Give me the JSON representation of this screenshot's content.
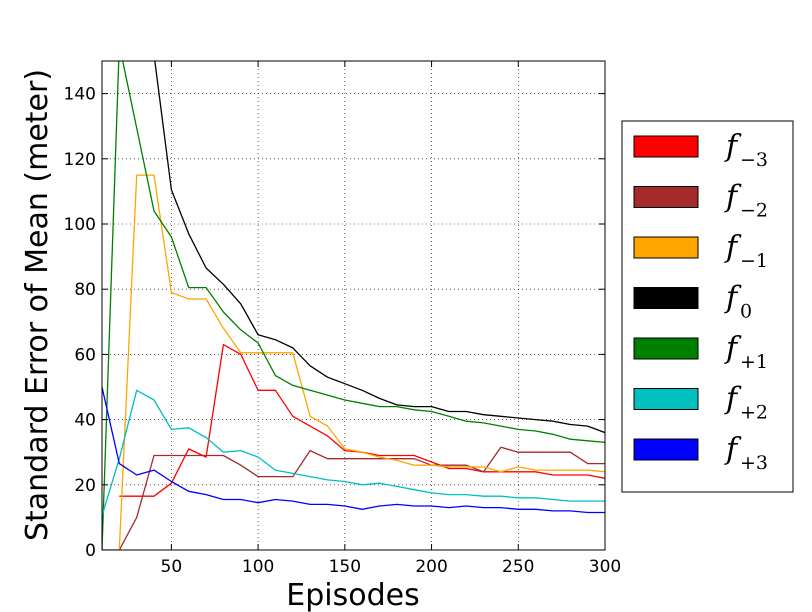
{
  "chart_data": {
    "type": "line",
    "xlabel": "Episodes",
    "ylabel": "Standard Error of Mean (meter)",
    "xlim": [
      10,
      300
    ],
    "ylim": [
      0,
      150
    ],
    "xticks": [
      50,
      100,
      150,
      200,
      250,
      300
    ],
    "yticks": [
      0,
      20,
      40,
      60,
      80,
      100,
      120,
      140
    ],
    "grid": true,
    "legend_position": "right",
    "series": [
      {
        "name_main": "f",
        "name_sub": "−3",
        "color": "#ff0000",
        "x": [
          20,
          30,
          40,
          50,
          60,
          70,
          80,
          90,
          100,
          110,
          120,
          130,
          140,
          150,
          160,
          170,
          180,
          190,
          200,
          210,
          220,
          230,
          240,
          250,
          260,
          270,
          280,
          290,
          300
        ],
        "y": [
          16.5,
          16.5,
          16.5,
          20.5,
          31,
          28.5,
          63,
          60,
          49,
          49,
          41,
          38,
          35,
          30.5,
          30,
          29,
          29,
          29,
          27,
          25,
          25,
          24,
          24,
          24,
          24,
          23,
          23,
          23,
          22
        ]
      },
      {
        "name_main": "f",
        "name_sub": "−2",
        "color": "#a52a2a",
        "x": [
          10,
          20,
          30,
          40,
          50,
          60,
          70,
          80,
          90,
          100,
          110,
          120,
          130,
          140,
          150,
          160,
          170,
          180,
          190,
          200,
          210,
          220,
          230,
          240,
          250,
          260,
          270,
          280,
          290,
          300
        ],
        "y": [
          0,
          0,
          10,
          29,
          29,
          29,
          29,
          29,
          26,
          22.5,
          22.5,
          22.5,
          30.5,
          28,
          28,
          28,
          28,
          28,
          28,
          26,
          26,
          26,
          24,
          31.5,
          30,
          30,
          30,
          30,
          26.5,
          26.5
        ]
      },
      {
        "name_main": "f",
        "name_sub": "−1",
        "color": "#ffa500",
        "x": [
          20,
          30,
          40,
          50,
          60,
          70,
          80,
          90,
          100,
          110,
          120,
          130,
          140,
          150,
          160,
          170,
          180,
          190,
          200,
          210,
          220,
          230,
          240,
          250,
          260,
          270,
          280,
          290,
          300
        ],
        "y": [
          0,
          115,
          115,
          79,
          77,
          77,
          68,
          60.5,
          60.5,
          60.5,
          60.5,
          41,
          38,
          31,
          30,
          28.5,
          27.5,
          26,
          26,
          25.5,
          25.5,
          25.5,
          24,
          25.5,
          24.5,
          24.5,
          24.5,
          24.5,
          24
        ]
      },
      {
        "name_main": "f",
        "name_sub": "0",
        "color": "#000000",
        "x": [
          40,
          50,
          60,
          70,
          80,
          90,
          100,
          110,
          120,
          130,
          140,
          150,
          160,
          170,
          180,
          190,
          200,
          210,
          220,
          230,
          240,
          250,
          260,
          270,
          280,
          290,
          300
        ],
        "y": [
          152,
          110.5,
          97,
          86.5,
          81.5,
          75.5,
          66,
          64.5,
          62,
          56.5,
          53,
          51,
          49,
          46.5,
          44.5,
          44,
          44,
          42.5,
          42.5,
          41.5,
          41,
          40.5,
          40,
          39.5,
          38.5,
          38,
          36
        ]
      },
      {
        "name_main": "f",
        "name_sub": "+1",
        "color": "#008000",
        "x": [
          10,
          20,
          40,
          50,
          60,
          70,
          80,
          90,
          100,
          110,
          120,
          130,
          140,
          150,
          160,
          170,
          180,
          190,
          200,
          210,
          220,
          230,
          240,
          250,
          260,
          270,
          280,
          290,
          300
        ],
        "y": [
          0,
          155,
          104,
          96,
          80.5,
          80.5,
          73,
          67.5,
          63.5,
          53.5,
          50.5,
          49,
          47.5,
          46,
          45,
          44,
          44,
          43,
          42.5,
          41,
          39.5,
          39,
          38,
          37,
          36.5,
          35.5,
          34,
          33.5,
          33
        ]
      },
      {
        "name_main": "f",
        "name_sub": "+2",
        "color": "#00bfbf",
        "x": [
          10,
          20,
          30,
          40,
          50,
          60,
          70,
          80,
          90,
          100,
          110,
          120,
          130,
          140,
          150,
          160,
          170,
          180,
          190,
          200,
          210,
          220,
          230,
          240,
          250,
          260,
          270,
          280,
          290,
          300
        ],
        "y": [
          10.5,
          28,
          49,
          46,
          37,
          37.5,
          34.5,
          30,
          30.5,
          28.5,
          24.5,
          23.5,
          22.5,
          21.5,
          21,
          20,
          20.5,
          19.5,
          18.5,
          17.5,
          17,
          17,
          16.5,
          16.5,
          16,
          16,
          15.5,
          15,
          15,
          15
        ]
      },
      {
        "name_main": "f",
        "name_sub": "+3",
        "color": "#0000ff",
        "x": [
          10,
          20,
          30,
          40,
          50,
          60,
          70,
          80,
          90,
          100,
          110,
          120,
          130,
          140,
          150,
          160,
          170,
          180,
          190,
          200,
          210,
          220,
          230,
          240,
          250,
          260,
          270,
          280,
          290,
          300
        ],
        "y": [
          50,
          26.5,
          23,
          24.5,
          21,
          18,
          17,
          15.5,
          15.5,
          14.5,
          15.5,
          15,
          14,
          14,
          13.5,
          12.5,
          13.5,
          14,
          13.5,
          13.5,
          13,
          13.5,
          13,
          13,
          12.5,
          12.5,
          12,
          12,
          11.5,
          11.5
        ]
      }
    ]
  }
}
